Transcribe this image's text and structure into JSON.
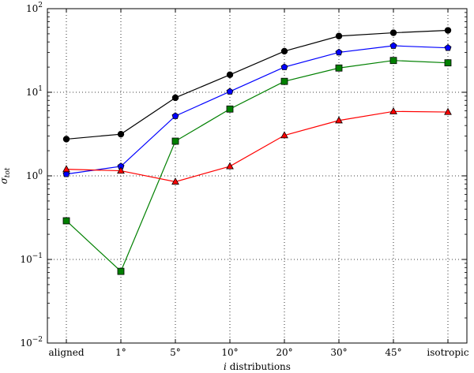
{
  "chart_data": {
    "type": "line",
    "title": "",
    "xlabel": "i distributions",
    "ylabel": "σ_tot",
    "y_scale": "log",
    "ylim": [
      0.01,
      100
    ],
    "grid": true,
    "grid_style": "dotted",
    "legend": "none",
    "categories": [
      "aligned",
      "1°",
      "5°",
      "10°",
      "20°",
      "30°",
      "45°",
      "isotropic"
    ],
    "y_ticks": [
      {
        "value": 0.01,
        "base": "10",
        "exp": "−2"
      },
      {
        "value": 0.1,
        "base": "10",
        "exp": "−1"
      },
      {
        "value": 1,
        "base": "10",
        "exp": "0"
      },
      {
        "value": 10,
        "base": "10",
        "exp": "1"
      },
      {
        "value": 100,
        "base": "10",
        "exp": "2"
      }
    ],
    "series": [
      {
        "color": "#000000",
        "marker": "circle",
        "values": [
          2.75,
          3.15,
          8.6,
          16.2,
          31,
          47,
          51.5,
          55
        ]
      },
      {
        "color": "#0000ff",
        "marker": "pentagon",
        "values": [
          1.05,
          1.3,
          5.2,
          10.2,
          20,
          30,
          36,
          34
        ]
      },
      {
        "color": "#008000",
        "marker": "square",
        "values": [
          0.29,
          0.072,
          2.6,
          6.3,
          13.5,
          19.5,
          24,
          22.5
        ]
      },
      {
        "color": "#ff0000",
        "marker": "triangle",
        "values": [
          1.2,
          1.15,
          0.85,
          1.3,
          3.05,
          4.6,
          5.9,
          5.8
        ]
      }
    ]
  }
}
